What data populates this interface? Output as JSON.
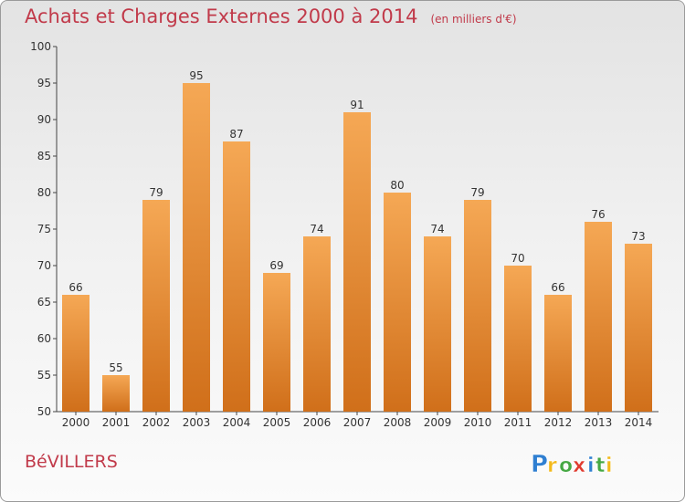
{
  "chart_data": {
    "type": "bar",
    "title": "Achats et Charges Externes 2000 à 2014",
    "subtitle": "(en milliers d'€)",
    "categories": [
      "2000",
      "2001",
      "2002",
      "2003",
      "2004",
      "2005",
      "2006",
      "2007",
      "2008",
      "2009",
      "2010",
      "2011",
      "2012",
      "2013",
      "2014"
    ],
    "values": [
      66,
      55,
      79,
      95,
      87,
      69,
      74,
      91,
      80,
      74,
      79,
      70,
      66,
      76,
      73
    ],
    "ylim": [
      50,
      100
    ],
    "yticks": [
      50,
      55,
      60,
      65,
      70,
      75,
      80,
      85,
      90,
      95,
      100
    ],
    "grid": false,
    "bar_color_light": "#f5a855",
    "bar_color_dark": "#d06f1a"
  },
  "place_name": "BéVILLERS",
  "brand": {
    "name": "Proxiti",
    "letters": [
      "P",
      "r",
      "o",
      "x",
      "i",
      "t",
      "i"
    ],
    "letter_colors": [
      "#2f7fd1",
      "#f3b91a",
      "#46a844",
      "#e03c31",
      "#2f7fd1",
      "#46a844",
      "#f3b91a"
    ]
  },
  "colors": {
    "title": "#c13a4a"
  }
}
